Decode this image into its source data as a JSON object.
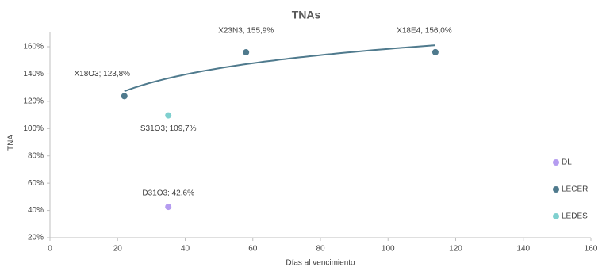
{
  "chart_data": {
    "type": "scatter",
    "title": "TNAs",
    "x_label": "Días al vencimiento",
    "y_label": "TNA",
    "xlim": [
      0,
      160
    ],
    "xticks": [
      0,
      20,
      40,
      60,
      80,
      100,
      120,
      140,
      160
    ],
    "ylim": [
      20,
      160
    ],
    "yticks": [
      {
        "value": 20,
        "label": "20%"
      },
      {
        "value": 40,
        "label": "40%"
      },
      {
        "value": 60,
        "label": "60%"
      },
      {
        "value": 80,
        "label": "80%"
      },
      {
        "value": 100,
        "label": "100%"
      },
      {
        "value": 120,
        "label": "120%"
      },
      {
        "value": 140,
        "label": "140%"
      },
      {
        "value": 160,
        "label": "160%"
      }
    ],
    "grid": false,
    "legend": "right",
    "series": [
      {
        "name": "DL",
        "color": "#b59cf0",
        "x": [
          35
        ],
        "values": [
          42.6
        ],
        "value_labels": [
          "D31O3; 42,6%"
        ]
      },
      {
        "name": "LECER",
        "color": "#4f7a8d",
        "x": [
          22,
          58,
          114
        ],
        "values": [
          123.8,
          155.9,
          156.0
        ],
        "value_labels": [
          "X18O3; 123,8%",
          "X23N3; 155,9%",
          "X18E4; 156,0%"
        ],
        "trendline": "logarithmic"
      },
      {
        "name": "LEDES",
        "color": "#7fd0cf",
        "x": [
          35
        ],
        "values": [
          109.7
        ],
        "value_labels": [
          "S31O3; 109,7%"
        ]
      }
    ]
  }
}
